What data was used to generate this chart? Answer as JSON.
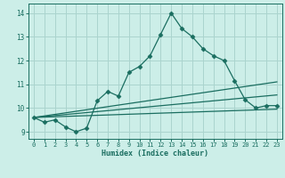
{
  "title": "",
  "xlabel": "Humidex (Indice chaleur)",
  "xlim": [
    -0.5,
    23.5
  ],
  "ylim": [
    8.7,
    14.4
  ],
  "yticks": [
    9,
    10,
    11,
    12,
    13,
    14
  ],
  "xticks": [
    0,
    1,
    2,
    3,
    4,
    5,
    6,
    7,
    8,
    9,
    10,
    11,
    12,
    13,
    14,
    15,
    16,
    17,
    18,
    19,
    20,
    21,
    22,
    23
  ],
  "bg_color": "#cceee8",
  "grid_color": "#aad4ce",
  "line_color": "#1a6e60",
  "main_line_x": [
    0,
    1,
    2,
    3,
    4,
    5,
    6,
    7,
    8,
    9,
    10,
    11,
    12,
    13,
    14,
    15,
    16,
    17,
    18,
    19,
    20,
    21,
    22,
    23
  ],
  "main_line_y": [
    9.6,
    9.4,
    9.5,
    9.2,
    9.0,
    9.15,
    10.3,
    10.7,
    10.5,
    11.5,
    11.75,
    12.2,
    13.1,
    14.0,
    13.35,
    13.0,
    12.5,
    12.2,
    12.0,
    11.15,
    10.35,
    10.0,
    10.1,
    10.1
  ],
  "line2_x": [
    0,
    23
  ],
  "line2_y": [
    9.6,
    11.1
  ],
  "line3_x": [
    0,
    23
  ],
  "line3_y": [
    9.6,
    10.55
  ],
  "line4_x": [
    0,
    23
  ],
  "line4_y": [
    9.6,
    9.95
  ]
}
